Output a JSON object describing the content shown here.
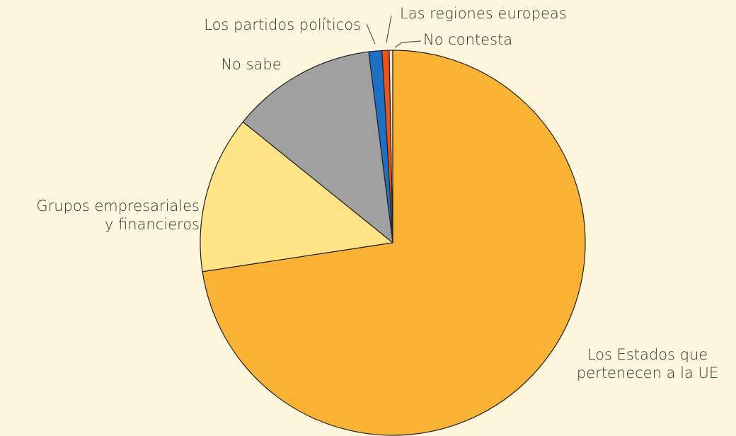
{
  "chart_data": {
    "type": "pie",
    "categories": [
      "Los Estados que\npertenecen a la UE",
      "Grupos empresariales\ny financieros",
      "No sabe",
      "Los partidos políticos",
      "Las regiones europeas",
      "No contesta"
    ],
    "values": [
      72.6,
      13.2,
      12.2,
      1.1,
      0.6,
      0.3
    ],
    "colors": [
      "#f9b234",
      "#ffe385",
      "#a0a0a0",
      "#1f6fc5",
      "#e8531e",
      "#f6e3b8"
    ]
  }
}
